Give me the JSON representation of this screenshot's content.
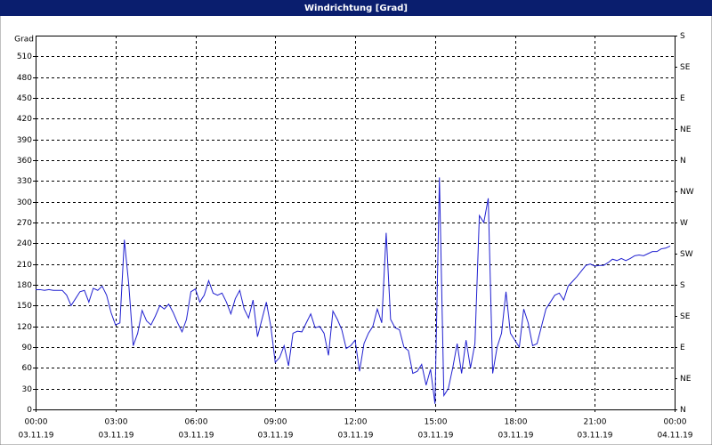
{
  "chart_data": {
    "type": "line",
    "title": "Windrichtung [Grad]",
    "y_label": "Grad",
    "xlim": [
      0,
      1440
    ],
    "xticks": [
      {
        "value": 0,
        "label": "00:00"
      },
      {
        "value": 180,
        "label": "03:00"
      },
      {
        "value": 360,
        "label": "06:00"
      },
      {
        "value": 540,
        "label": "09:00"
      },
      {
        "value": 720,
        "label": "12:00"
      },
      {
        "value": 900,
        "label": "15:00"
      },
      {
        "value": 1080,
        "label": "18:00"
      },
      {
        "value": 1260,
        "label": "21:00"
      },
      {
        "value": 1440,
        "label": "00:00"
      }
    ],
    "xtick_dates": [
      "03.11.19",
      "03.11.19",
      "03.11.19",
      "03.11.19",
      "03.11.19",
      "03.11.19",
      "03.11.19",
      "03.11.19",
      "04.11.19"
    ],
    "ylim": [
      0,
      540
    ],
    "yticks": [
      0,
      30,
      60,
      90,
      120,
      150,
      180,
      210,
      240,
      270,
      300,
      330,
      360,
      390,
      420,
      450,
      480,
      510
    ],
    "y2lim": [
      0,
      540
    ],
    "y2ticks": [
      {
        "value": 0,
        "label": "N"
      },
      {
        "value": 45,
        "label": "NE"
      },
      {
        "value": 90,
        "label": "E"
      },
      {
        "value": 135,
        "label": "SE"
      },
      {
        "value": 180,
        "label": "S"
      },
      {
        "value": 225,
        "label": "SW"
      },
      {
        "value": 270,
        "label": "W"
      },
      {
        "value": 315,
        "label": "NW"
      },
      {
        "value": 360,
        "label": "N"
      },
      {
        "value": 405,
        "label": "NE"
      },
      {
        "value": 450,
        "label": "E"
      },
      {
        "value": 495,
        "label": "SE"
      },
      {
        "value": 540,
        "label": "S"
      }
    ],
    "grid": true,
    "x": [
      0,
      10,
      20,
      30,
      40,
      50,
      60,
      70,
      80,
      90,
      100,
      110,
      120,
      130,
      140,
      150,
      160,
      170,
      180,
      190,
      200,
      210,
      220,
      230,
      240,
      250,
      260,
      270,
      280,
      290,
      300,
      310,
      320,
      330,
      340,
      350,
      360,
      370,
      380,
      390,
      400,
      410,
      420,
      430,
      440,
      450,
      460,
      470,
      480,
      490,
      500,
      510,
      520,
      530,
      540,
      550,
      560,
      570,
      580,
      590,
      600,
      610,
      620,
      630,
      640,
      650,
      660,
      670,
      680,
      690,
      700,
      710,
      720,
      730,
      740,
      750,
      760,
      770,
      780,
      790,
      800,
      810,
      820,
      830,
      840,
      850,
      860,
      870,
      880,
      890,
      900,
      910,
      920,
      930,
      940,
      950,
      960,
      970,
      980,
      990,
      1000,
      1010,
      1020,
      1030,
      1040,
      1050,
      1060,
      1070,
      1080,
      1090,
      1100,
      1110,
      1120,
      1130,
      1140,
      1150,
      1160,
      1170,
      1180,
      1190,
      1200,
      1210,
      1220,
      1230,
      1240,
      1250,
      1260,
      1270,
      1280,
      1290,
      1300,
      1310,
      1320,
      1330,
      1340,
      1350,
      1360,
      1370,
      1380,
      1390,
      1400,
      1410,
      1420,
      1430
    ],
    "series": [
      {
        "color": "#2020d0",
        "values": [
          173,
          173,
          172,
          173,
          172,
          172,
          172,
          165,
          150,
          160,
          170,
          172,
          155,
          175,
          172,
          178,
          165,
          140,
          122,
          125,
          245,
          180,
          92,
          110,
          143,
          128,
          122,
          135,
          150,
          145,
          152,
          140,
          125,
          112,
          130,
          170,
          174,
          155,
          165,
          186,
          168,
          165,
          168,
          155,
          138,
          160,
          172,
          145,
          132,
          158,
          105,
          130,
          155,
          120,
          68,
          75,
          92,
          63,
          110,
          113,
          112,
          125,
          138,
          118,
          120,
          110,
          78,
          142,
          130,
          115,
          88,
          92,
          100,
          55,
          95,
          110,
          120,
          145,
          125,
          255,
          130,
          118,
          115,
          90,
          85,
          52,
          55,
          65,
          35,
          58,
          8,
          335,
          20,
          30,
          60,
          95,
          52,
          100,
          60,
          95,
          280,
          270,
          305,
          52,
          90,
          110,
          170,
          110,
          100,
          90,
          145,
          125,
          92,
          95,
          120,
          145,
          155,
          165,
          168,
          158,
          178,
          185,
          192,
          200,
          208,
          210,
          207,
          208,
          208,
          212,
          217,
          215,
          218,
          215,
          218,
          222,
          223,
          222,
          225,
          228,
          228,
          232,
          233,
          236
        ]
      }
    ]
  }
}
